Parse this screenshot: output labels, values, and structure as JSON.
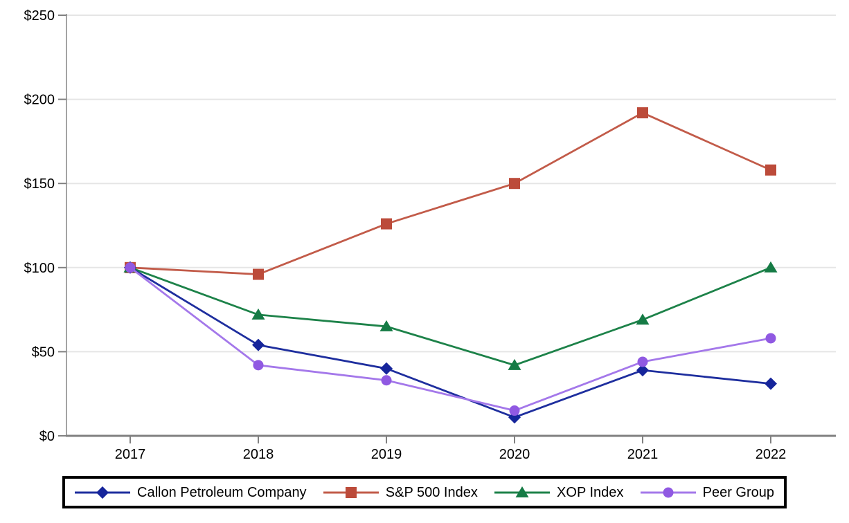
{
  "chart_data": {
    "type": "line",
    "title": "",
    "categories": [
      "2017",
      "2018",
      "2019",
      "2020",
      "2021",
      "2022"
    ],
    "series": [
      {
        "name": "Callon Petroleum Company",
        "marker": "diamond",
        "line_color": "#1E2E9E",
        "marker_color": "#16259B",
        "values": [
          100,
          54,
          40,
          11,
          39,
          31
        ]
      },
      {
        "name": "S&P 500 Index",
        "marker": "square",
        "line_color": "#C25B49",
        "marker_color": "#BC4B3A",
        "values": [
          100,
          96,
          126,
          150,
          192,
          158
        ]
      },
      {
        "name": "XOP Index",
        "marker": "triangle",
        "line_color": "#1D8249",
        "marker_color": "#157B45",
        "values": [
          100,
          72,
          65,
          42,
          69,
          100
        ]
      },
      {
        "name": "Peer Group",
        "marker": "circle",
        "line_color": "#A478EA",
        "marker_color": "#9059E2",
        "values": [
          100,
          42,
          33,
          15,
          44,
          58
        ]
      }
    ],
    "ylim": [
      0,
      250
    ],
    "yticks": [
      0,
      50,
      100,
      150,
      200,
      250
    ],
    "ytick_prefix": "$",
    "grid": true,
    "legend_position": "bottom-boxed",
    "colors": {
      "gridline": "#E5E5E5",
      "y_axis": "#A3A3A3",
      "x_axis": "#808080",
      "tick": "#808080",
      "label_text": "#000000"
    }
  }
}
